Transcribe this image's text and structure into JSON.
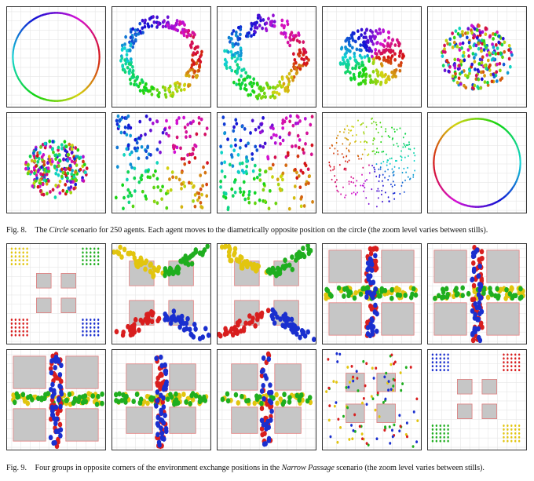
{
  "figures": [
    {
      "id": "fig8",
      "caption": {
        "label": "Fig. 8.",
        "pre": "The",
        "em": "Circle",
        "post": "scenario for 250 agents. Each agent moves to the diametrically opposite position on the circle (the zoom level varies between stills)."
      },
      "panels": [
        {
          "name": "circle-still-1",
          "kind": "ring-hue",
          "agents": 250
        },
        {
          "name": "circle-still-2",
          "kind": "ring-scatter",
          "agents": 250
        },
        {
          "name": "circle-still-3",
          "kind": "ring-scatter-dense",
          "agents": 250
        },
        {
          "name": "circle-still-4",
          "kind": "disk-rainbow",
          "agents": 250
        },
        {
          "name": "circle-still-5",
          "kind": "disk-blob",
          "agents": 250
        },
        {
          "name": "circle-still-6",
          "kind": "disk-small",
          "agents": 250
        },
        {
          "name": "circle-still-7",
          "kind": "scatter-wide",
          "agents": 250
        },
        {
          "name": "circle-still-8",
          "kind": "scatter-wide",
          "agents": 250
        },
        {
          "name": "circle-still-9",
          "kind": "scatter-tiny",
          "agents": 250
        },
        {
          "name": "circle-still-10",
          "kind": "ring-hue-final",
          "agents": 250
        }
      ]
    },
    {
      "id": "fig9",
      "caption": {
        "label": "Fig. 9.",
        "pre": "Four groups in opposite corners of the environment exchange positions in the",
        "em": "Narrow Passage",
        "post": "scenario (the zoom level varies between stills)."
      },
      "panels": [
        {
          "name": "narrow-still-1",
          "kind": "corners-start"
        },
        {
          "name": "narrow-still-2",
          "kind": "arrive"
        },
        {
          "name": "narrow-still-3",
          "kind": "arrive-dense"
        },
        {
          "name": "narrow-still-4",
          "kind": "cross-big"
        },
        {
          "name": "narrow-still-5",
          "kind": "cross-big"
        },
        {
          "name": "narrow-still-6",
          "kind": "cross-big-spread"
        },
        {
          "name": "narrow-still-7",
          "kind": "cross-mid"
        },
        {
          "name": "narrow-still-8",
          "kind": "cross-mid-sparse"
        },
        {
          "name": "narrow-still-9",
          "kind": "disperse"
        },
        {
          "name": "narrow-still-10",
          "kind": "corners-end"
        }
      ],
      "group_colors": [
        "#e2c50f",
        "#1fae1f",
        "#d81e1e",
        "#1a2fcf"
      ]
    }
  ],
  "obstacle_color": "#c6c6c6",
  "obstacle_edge": "#e07b7b",
  "grid_color": "#e6e6e6"
}
